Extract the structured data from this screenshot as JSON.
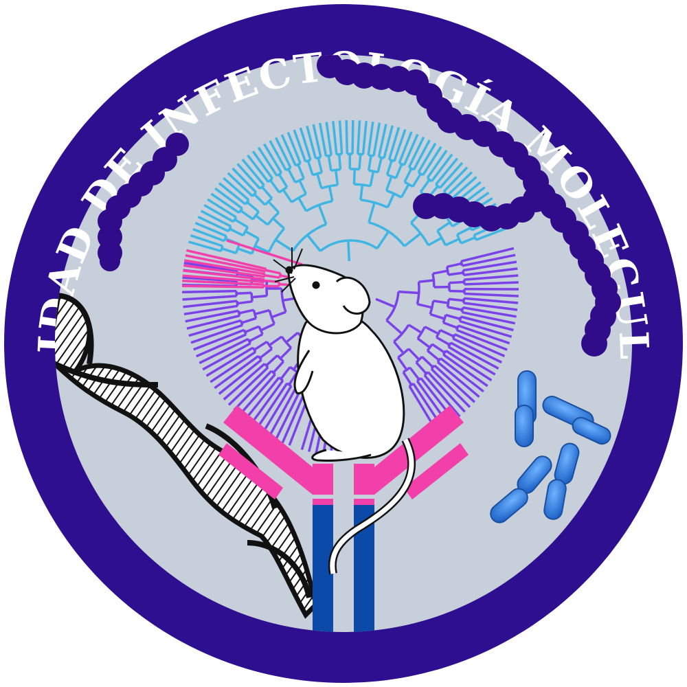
{
  "logo": {
    "ring_text": "UNIDAD DE INFECTOLOGÍA MOLECULAR",
    "colors": {
      "ring": "#2e0f8f",
      "ring_text": "#ffffff",
      "background": "#c7cfda",
      "cocci_chain": "#300c8a",
      "tree_cyan": "#3fb5e3",
      "tree_purple": "#7a43e8",
      "tree_pink": "#f23fa9",
      "antibody_pink": "#f23fa9",
      "antibody_blue": "#0b4aa8",
      "bacilli": "#2d7fe0",
      "dna": "#111111",
      "mouse": "#ffffff"
    },
    "icons": [
      "cocci-chain-icon",
      "phylogenetic-tree-icon",
      "mouse-icon",
      "antibody-icon",
      "dna-helix-icon",
      "bacilli-icon"
    ]
  }
}
